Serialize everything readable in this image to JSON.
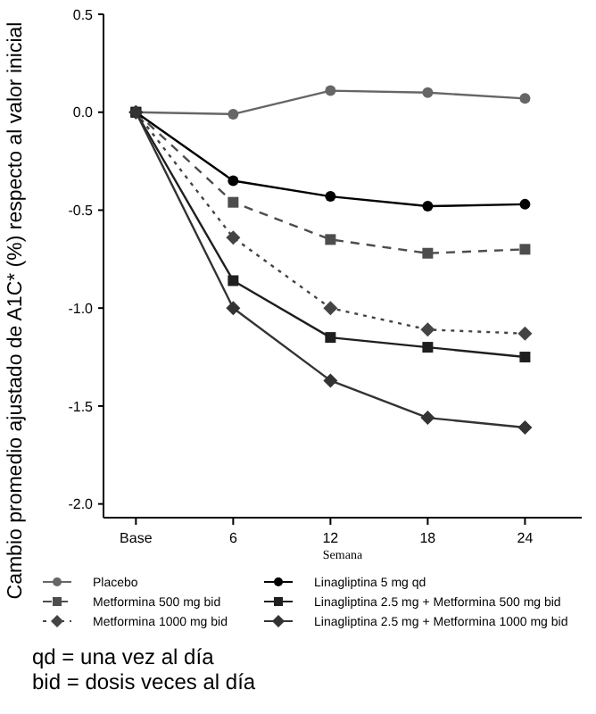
{
  "chart_data": {
    "type": "line",
    "xlabel": "Semana",
    "ylabel": "Cambio promedio ajustado de A1C* (%) respecto al valor inicial",
    "x": [
      0,
      6,
      12,
      18,
      24
    ],
    "xlim": [
      -2,
      27.5
    ],
    "xticks": [
      {
        "value": 0,
        "label": "Base"
      },
      6,
      12,
      18,
      24
    ],
    "ylim": [
      -2.07,
      0.5
    ],
    "yticks": [
      0.5,
      {
        "value": 0,
        "label": "0.0"
      },
      -0.5,
      {
        "value": -1,
        "label": "-1.0"
      },
      -1.5,
      {
        "value": -2,
        "label": "-2.0"
      }
    ],
    "grid": false,
    "legend": "bottom",
    "series": [
      {
        "name": "Placebo",
        "color": "#666666",
        "marker": "circle",
        "line_style": "solid",
        "values": [
          0,
          -0.01,
          0.11,
          0.1,
          0.07
        ]
      },
      {
        "name": "Metformina 500 mg bid",
        "color": "#4d4d4d",
        "marker": "square",
        "line_style": "dashed",
        "values": [
          0,
          -0.46,
          -0.65,
          -0.72,
          -0.7
        ]
      },
      {
        "name": "Metformina 1000 mg bid",
        "color": "#444444",
        "marker": "diamond",
        "line_style": "dotted",
        "values": [
          0,
          -0.64,
          -1.0,
          -1.11,
          -1.13
        ]
      },
      {
        "name": "Linagliptina 5 mg qd",
        "color": "#000000",
        "marker": "circle",
        "line_style": "solid",
        "values": [
          0,
          -0.35,
          -0.43,
          -0.48,
          -0.47
        ]
      },
      {
        "name": "Linagliptina 2.5 mg + Metformina 500 mg bid",
        "color": "#1f1f1f",
        "marker": "square",
        "line_style": "solid",
        "values": [
          0,
          -0.86,
          -1.15,
          -1.2,
          -1.25
        ]
      },
      {
        "name": "Linagliptina 2.5 mg + Metformina 1000 mg bid",
        "color": "#333333",
        "marker": "diamond",
        "line_style": "solid",
        "values": [
          0,
          -1.0,
          -1.37,
          -1.56,
          -1.61
        ]
      }
    ],
    "annotations": [
      "qd = una vez al día",
      "bid = dosis veces al día"
    ]
  }
}
